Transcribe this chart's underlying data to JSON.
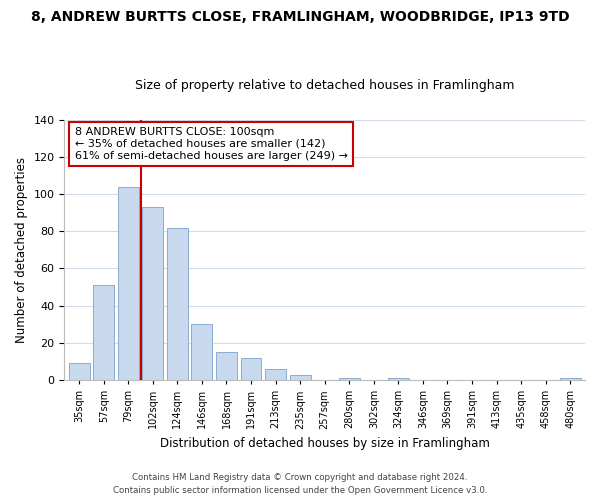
{
  "title": "8, ANDREW BURTTS CLOSE, FRAMLINGHAM, WOODBRIDGE, IP13 9TD",
  "subtitle": "Size of property relative to detached houses in Framlingham",
  "xlabel": "Distribution of detached houses by size in Framlingham",
  "ylabel": "Number of detached properties",
  "bar_labels": [
    "35sqm",
    "57sqm",
    "79sqm",
    "102sqm",
    "124sqm",
    "146sqm",
    "168sqm",
    "191sqm",
    "213sqm",
    "235sqm",
    "257sqm",
    "280sqm",
    "302sqm",
    "324sqm",
    "346sqm",
    "369sqm",
    "391sqm",
    "413sqm",
    "435sqm",
    "458sqm",
    "480sqm"
  ],
  "bar_values": [
    9,
    51,
    104,
    93,
    82,
    30,
    15,
    12,
    6,
    3,
    0,
    1,
    0,
    1,
    0,
    0,
    0,
    0,
    0,
    0,
    1
  ],
  "bar_color": "#c8d9ee",
  "bar_edge_color": "#7ba3cc",
  "vline_color": "#cc0000",
  "annotation_text": "8 ANDREW BURTTS CLOSE: 100sqm\n← 35% of detached houses are smaller (142)\n61% of semi-detached houses are larger (249) →",
  "annotation_box_color": "#ffffff",
  "annotation_box_edge": "#cc0000",
  "ylim": [
    0,
    140
  ],
  "yticks": [
    0,
    20,
    40,
    60,
    80,
    100,
    120,
    140
  ],
  "footer1": "Contains HM Land Registry data © Crown copyright and database right 2024.",
  "footer2": "Contains public sector information licensed under the Open Government Licence v3.0.",
  "bg_color": "#ffffff",
  "grid_color": "#d0dce8"
}
